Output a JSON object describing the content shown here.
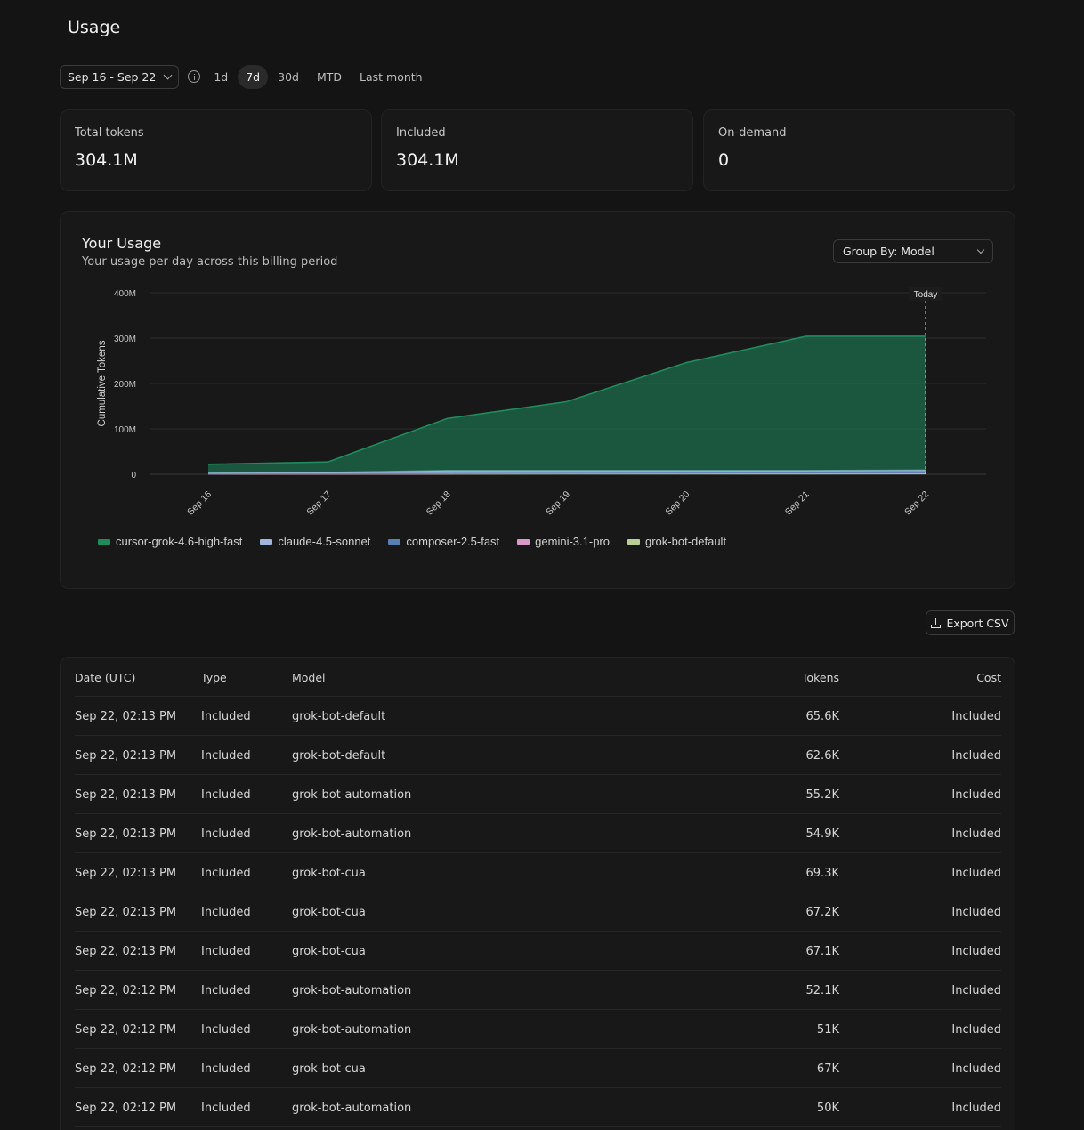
{
  "page": {
    "title": "Usage"
  },
  "toolbar": {
    "date_range": "Sep 16 - Sep 22",
    "ranges": [
      {
        "label": "1d",
        "active": false
      },
      {
        "label": "7d",
        "active": true
      },
      {
        "label": "30d",
        "active": false
      },
      {
        "label": "MTD",
        "active": false
      },
      {
        "label": "Last month",
        "active": false
      }
    ]
  },
  "stats": [
    {
      "label": "Total tokens",
      "value": "304.1M"
    },
    {
      "label": "Included",
      "value": "304.1M"
    },
    {
      "label": "On-demand",
      "value": "0"
    }
  ],
  "usage": {
    "title": "Your Usage",
    "subtitle": "Your usage per day across this billing period",
    "group_by": "Group By: Model",
    "today_label": "Today"
  },
  "chart_data": {
    "type": "area",
    "stacked": true,
    "title": "",
    "xlabel": "",
    "ylabel": "Cumulative Tokens",
    "ylim": [
      0,
      400
    ],
    "y_unit": "M",
    "yticks": [
      "0",
      "100M",
      "200M",
      "300M",
      "400M"
    ],
    "categories": [
      "Sep 16",
      "Sep 17",
      "Sep 18",
      "Sep 19",
      "Sep 20",
      "Sep 21",
      "Sep 22"
    ],
    "today_index": 6,
    "legend_position": "bottom",
    "grid": true,
    "series": [
      {
        "name": "grok-bot-default",
        "color": "#b9cf95",
        "values": [
          0.5,
          0.6,
          0.8,
          1.0,
          1.1,
          1.2,
          1.3
        ]
      },
      {
        "name": "gemini-3.1-pro",
        "color": "#d99ac8",
        "values": [
          0.2,
          0.3,
          0.4,
          0.5,
          0.5,
          0.6,
          0.6
        ]
      },
      {
        "name": "composer-2.5-fast",
        "color": "#5a7fb4",
        "values": [
          0.5,
          0.8,
          1.2,
          1.5,
          1.8,
          2.0,
          2.2
        ]
      },
      {
        "name": "claude-4.5-sonnet",
        "color": "#9fb6dc",
        "values": [
          1.5,
          2.3,
          5.6,
          5.0,
          4.6,
          4.2,
          4.9
        ]
      },
      {
        "name": "cursor-grok-4.6-high-fast",
        "color": "#1f8a5e",
        "values": [
          19.3,
          23.0,
          115.0,
          152.0,
          238.0,
          296.0,
          295.1
        ]
      }
    ],
    "legend_order": [
      "cursor-grok-4.6-high-fast",
      "claude-4.5-sonnet",
      "composer-2.5-fast",
      "gemini-3.1-pro",
      "grok-bot-default"
    ]
  },
  "export": {
    "label": "Export CSV"
  },
  "table": {
    "headers": {
      "date": "Date (UTC)",
      "type": "Type",
      "model": "Model",
      "tokens": "Tokens",
      "cost": "Cost"
    },
    "rows": [
      {
        "date": "Sep 22, 02:13 PM",
        "type": "Included",
        "model": "grok-bot-default",
        "tokens": "65.6K",
        "cost": "Included"
      },
      {
        "date": "Sep 22, 02:13 PM",
        "type": "Included",
        "model": "grok-bot-default",
        "tokens": "62.6K",
        "cost": "Included"
      },
      {
        "date": "Sep 22, 02:13 PM",
        "type": "Included",
        "model": "grok-bot-automation",
        "tokens": "55.2K",
        "cost": "Included"
      },
      {
        "date": "Sep 22, 02:13 PM",
        "type": "Included",
        "model": "grok-bot-automation",
        "tokens": "54.9K",
        "cost": "Included"
      },
      {
        "date": "Sep 22, 02:13 PM",
        "type": "Included",
        "model": "grok-bot-cua",
        "tokens": "69.3K",
        "cost": "Included"
      },
      {
        "date": "Sep 22, 02:13 PM",
        "type": "Included",
        "model": "grok-bot-cua",
        "tokens": "67.2K",
        "cost": "Included"
      },
      {
        "date": "Sep 22, 02:13 PM",
        "type": "Included",
        "model": "grok-bot-cua",
        "tokens": "67.1K",
        "cost": "Included"
      },
      {
        "date": "Sep 22, 02:12 PM",
        "type": "Included",
        "model": "grok-bot-automation",
        "tokens": "52.1K",
        "cost": "Included"
      },
      {
        "date": "Sep 22, 02:12 PM",
        "type": "Included",
        "model": "grok-bot-automation",
        "tokens": "51K",
        "cost": "Included"
      },
      {
        "date": "Sep 22, 02:12 PM",
        "type": "Included",
        "model": "grok-bot-cua",
        "tokens": "67K",
        "cost": "Included"
      },
      {
        "date": "Sep 22, 02:12 PM",
        "type": "Included",
        "model": "grok-bot-automation",
        "tokens": "50K",
        "cost": "Included"
      }
    ]
  }
}
